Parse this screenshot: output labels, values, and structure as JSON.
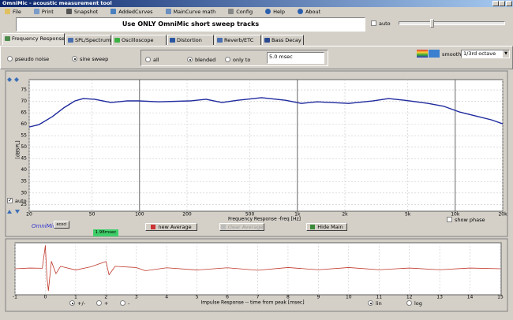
{
  "window": {
    "title": "OmniMic - acoustic measurement tool"
  },
  "menu": [
    "File",
    "Print",
    "Snapshot",
    "AddedCurves",
    "MainCurve math",
    "Config",
    "Help",
    "About"
  ],
  "banner": "Use ONLY OmniMic short sweep tracks",
  "auto_label": "auto",
  "tabs": [
    "Frequency Response",
    "SPL/Spectrum",
    "Oscilloscope",
    "Distortion",
    "Reverb/ETC",
    "Bass Decay"
  ],
  "signal_options": [
    "pseudo noise",
    "sine sweep"
  ],
  "window_options": [
    "all",
    "blended",
    "only to"
  ],
  "window_time": "5.0 msec",
  "smoothing_label": "smoothing",
  "smoothing_value": "1/3rd octave",
  "freq_chart": {
    "type": "line",
    "xlabel": "Frequency Response -freq [Hz]",
    "ylabel": "[dBSPL]",
    "log_x": true,
    "grid": true,
    "x": [
      20,
      23,
      28,
      33,
      39,
      44,
      52,
      66,
      83,
      99,
      132,
      209,
      264,
      333,
      419,
      593,
      840,
      1058,
      1334,
      2118,
      2999,
      3778,
      4766,
      6740,
      8500,
      10700,
      13500,
      17000,
      20000
    ],
    "series": [
      {
        "color": "#1f2a9e",
        "values": [
          58.8,
          59.8,
          63.3,
          67.1,
          70.2,
          71.2,
          70.9,
          69.5,
          70.2,
          70.2,
          69.8,
          70.2,
          70.9,
          69.5,
          70.5,
          71.6,
          70.5,
          69.1,
          69.8,
          69.1,
          70.2,
          71.2,
          70.5,
          69.1,
          67.8,
          65.3,
          63.6,
          61.9,
          60.2
        ]
      }
    ],
    "xlim": [
      20,
      20000
    ],
    "ylim": [
      22,
      79.5
    ],
    "xticks": [
      20,
      50,
      100,
      200,
      500,
      {
        "value": 1000,
        "label": "1k"
      },
      {
        "value": 2000,
        "label": "2k"
      },
      {
        "value": 5000,
        "label": "5k"
      },
      {
        "value": 10000,
        "label": "10k"
      },
      {
        "value": 20000,
        "label": "20k"
      }
    ],
    "yticks": [
      75,
      70,
      65,
      60,
      55,
      50,
      45,
      40,
      35,
      30,
      25
    ]
  },
  "freq_controls": {
    "auto": "auto",
    "brand": "OmniMic",
    "small_button": "ecoci",
    "delay": "1.98msec",
    "show_phase": "show phase",
    "buttons": [
      "new Average",
      "clear Average",
      "Hide Main"
    ]
  },
  "impulse_chart": {
    "type": "line",
    "xlabel": "Impulse Response  -- time from peak [msec]",
    "color": "#c0392b",
    "x": [
      -1,
      -0.5,
      -0.1,
      0,
      0.05,
      0.1,
      0.2,
      0.35,
      0.5,
      1,
      1.5,
      2,
      2.1,
      2.3,
      3,
      3.3,
      4,
      5,
      6,
      7,
      8,
      9,
      10,
      11,
      12,
      13,
      14,
      15
    ],
    "values": [
      0,
      0.03,
      0.02,
      0.95,
      -0.3,
      -0.9,
      0.3,
      -0.2,
      0.1,
      -0.05,
      0.08,
      0.3,
      -0.25,
      0.1,
      0.05,
      -0.08,
      0.04,
      -0.05,
      0.04,
      -0.06,
      0.05,
      -0.04,
      0.05,
      -0.04,
      0.03,
      -0.04,
      0.03,
      0
    ],
    "xlim": [
      -1,
      15
    ],
    "ylim": [
      -1,
      1
    ],
    "xticks": [
      -1,
      0,
      1,
      2,
      3,
      4,
      5,
      6,
      7,
      8,
      9,
      10,
      11,
      12,
      13,
      14,
      15
    ]
  },
  "impulse_controls": {
    "polarity": [
      "+/-",
      "+",
      "-"
    ],
    "scale": [
      "lin",
      "log"
    ]
  }
}
